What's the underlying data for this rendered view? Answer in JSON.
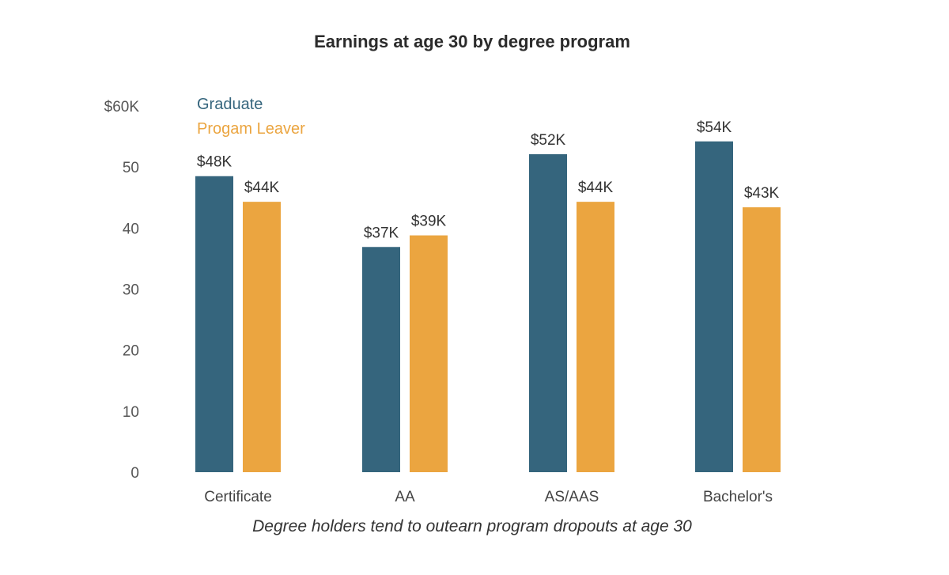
{
  "chart_data": {
    "type": "bar",
    "title": "Earnings at age 30 by degree program",
    "subtitle": "Degree holders tend to outearn program dropouts at age 30",
    "xlabel": "",
    "ylabel": "",
    "categories": [
      "Certificate",
      "AA",
      "AS/AAS",
      "Bachelor's"
    ],
    "series": [
      {
        "name": "Graduate",
        "values": [
          48.5,
          36.9,
          52.1,
          54.2
        ],
        "labels": [
          "$48K",
          "$37K",
          "$52K",
          "$54K"
        ],
        "color": "#35657d"
      },
      {
        "name": "Progam Leaver",
        "values": [
          44.3,
          38.8,
          44.3,
          43.4
        ],
        "labels": [
          "$44K",
          "$39K",
          "$44K",
          "$43K"
        ],
        "color": "#eba540"
      }
    ],
    "ylim": [
      0,
      60
    ],
    "yticks": [
      0,
      10,
      20,
      30,
      40,
      50,
      60
    ],
    "ytick_labels": [
      "0",
      "10",
      "20",
      "30",
      "40",
      "50",
      "$60K"
    ],
    "grid": false,
    "legend": "top-left"
  }
}
